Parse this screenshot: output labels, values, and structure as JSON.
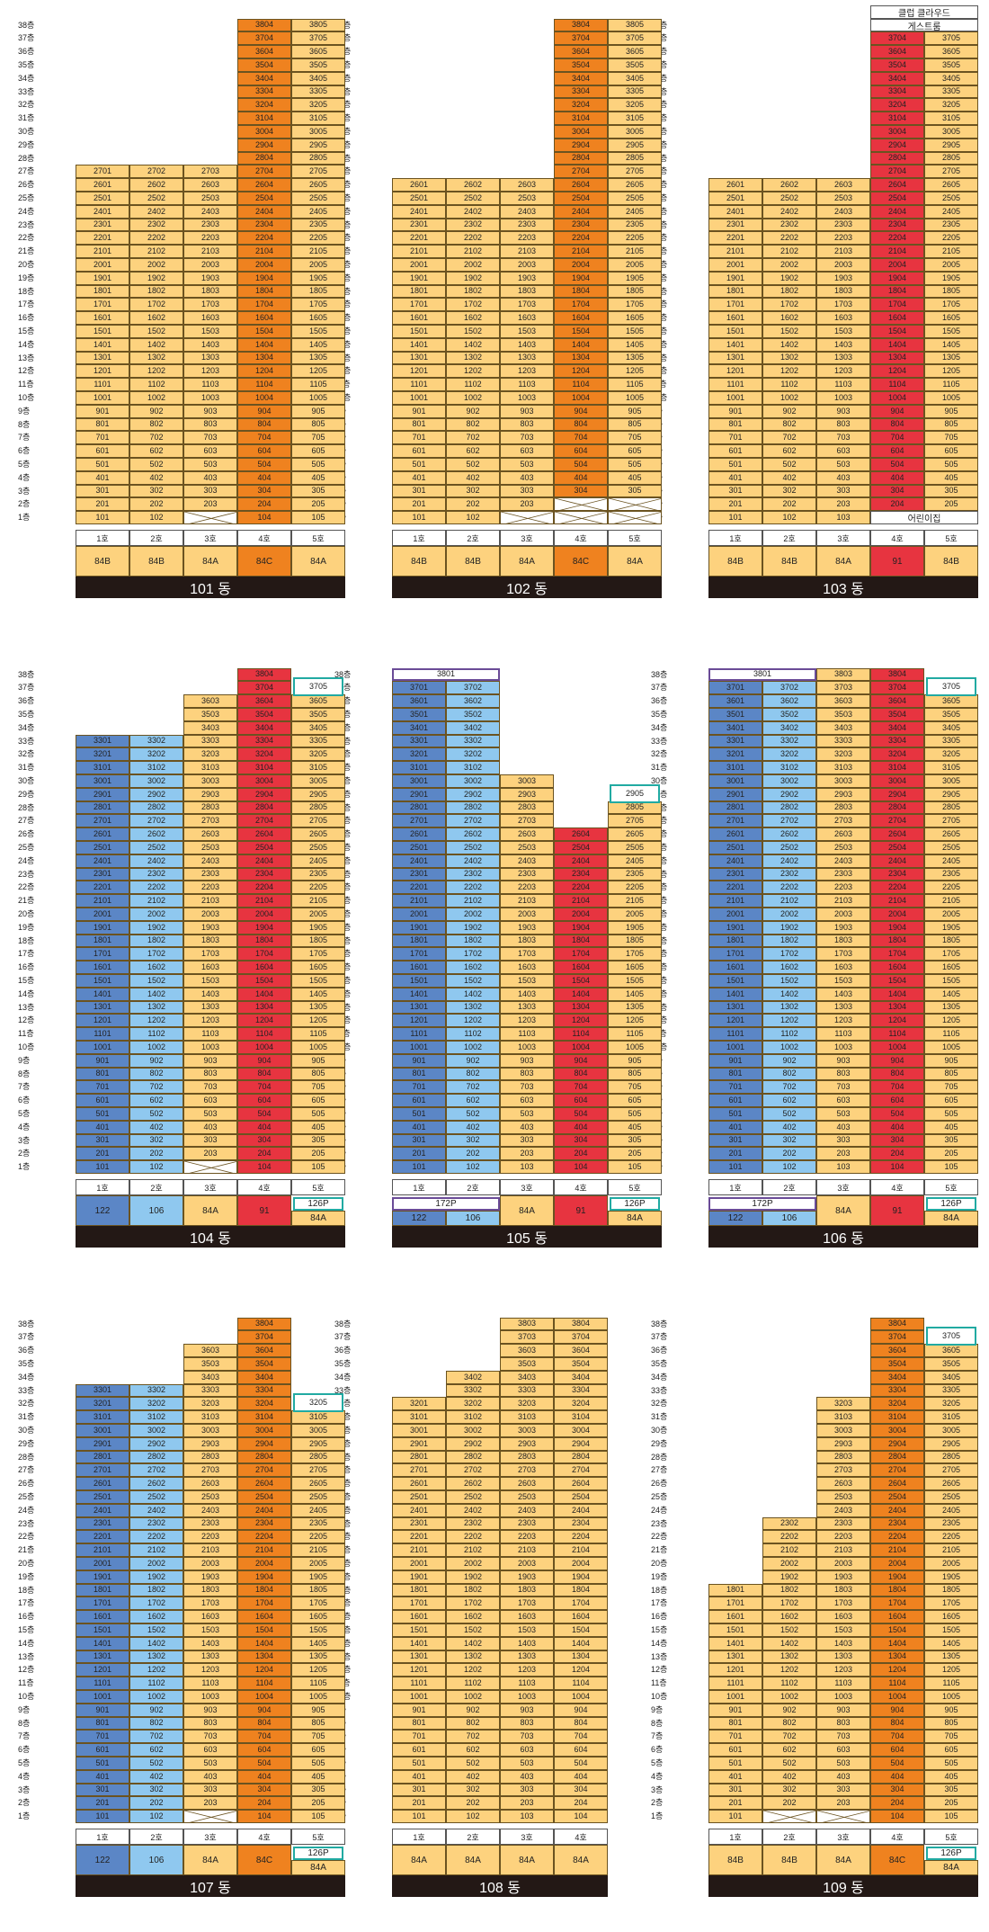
{
  "colors": {
    "Y": "#fdd27e",
    "O": "#ef821f",
    "R": "#e73440",
    "DB": "#5b86c6",
    "LB": "#8fc8ef",
    "X": "#ffffff",
    "purple": "#6a4b97",
    "teal": "#21aaa2"
  },
  "floor_labels": [
    "1층",
    "2층",
    "3층",
    "4층",
    "5층",
    "6층",
    "7층",
    "8층",
    "9층",
    "10층",
    "11층",
    "12층",
    "13층",
    "14층",
    "15층",
    "16층",
    "17층",
    "18층",
    "19층",
    "20층",
    "21층",
    "22층",
    "23층",
    "24층",
    "25층",
    "26층",
    "27층",
    "28층",
    "29층",
    "30층",
    "31층",
    "32층",
    "33층",
    "34층",
    "35층",
    "36층",
    "37층",
    "38층"
  ],
  "line_headers": [
    "1호",
    "2호",
    "3호",
    "4호",
    "5호"
  ],
  "buildings": [
    {
      "name": "101 동",
      "cols": [
        {
          "max": 27,
          "c": "Y",
          "type": "84B",
          "tc": "Y"
        },
        {
          "max": 27,
          "c": "Y",
          "type": "84B",
          "tc": "Y"
        },
        {
          "min": 2,
          "max": 27,
          "c": "Y",
          "type": "84A",
          "tc": "Y"
        },
        {
          "max": 38,
          "c": "O",
          "type": "84C",
          "tc": "O"
        },
        {
          "max": 38,
          "c": "Y",
          "type": "84A",
          "tc": "Y"
        }
      ],
      "x_floor": 1,
      "x_cols": [
        2
      ]
    },
    {
      "name": "102 동",
      "cols": [
        {
          "max": 26,
          "c": "Y",
          "type": "84B",
          "tc": "Y"
        },
        {
          "max": 26,
          "c": "Y",
          "type": "84B",
          "tc": "Y"
        },
        {
          "min": 2,
          "max": 26,
          "c": "Y",
          "type": "84A",
          "tc": "Y"
        },
        {
          "min": 3,
          "max": 38,
          "c": "O",
          "type": "84C",
          "tc": "O"
        },
        {
          "min": 3,
          "max": 38,
          "c": "Y",
          "type": "84A",
          "tc": "Y"
        }
      ],
      "x_floor": 1,
      "x_cols": [
        2,
        3,
        4
      ],
      "x_floor2": 2,
      "x_cols2": [
        3,
        4
      ]
    },
    {
      "name": "103 동",
      "cols": [
        {
          "max": 26,
          "c": "Y",
          "type": "84B",
          "tc": "Y"
        },
        {
          "max": 26,
          "c": "Y",
          "type": "84B",
          "tc": "Y"
        },
        {
          "max": 26,
          "c": "Y",
          "type": "84A",
          "tc": "Y"
        },
        {
          "min": 2,
          "max": 37,
          "c": "R",
          "type": "91",
          "tc": "R"
        },
        {
          "min": 2,
          "max": 37,
          "c": "Y",
          "type": "84B",
          "tc": "Y"
        }
      ],
      "note_top": [
        "클럽 클라우드",
        "게스트룸"
      ],
      "note_bottom": "어린이집"
    },
    {
      "name": "104 동",
      "cols": [
        {
          "max": 33,
          "c": "DB",
          "type": "122",
          "tc": "DB"
        },
        {
          "max": 33,
          "c": "LB",
          "type": "106",
          "tc": "LB"
        },
        {
          "min": 2,
          "max": 36,
          "c": "Y",
          "type": "84A",
          "tc": "Y"
        },
        {
          "max": 38,
          "c": "R",
          "type": "91",
          "tc": "R"
        },
        {
          "max": 36,
          "c": "Y",
          "type": "84A",
          "tc": "Y",
          "p_label": "126P",
          "p_floor": 37,
          "p_val": "3705"
        }
      ],
      "x_floor": 1,
      "x_cols": [
        2
      ]
    },
    {
      "name": "105 동",
      "cols": [
        {
          "max": 37,
          "c": "DB",
          "type": "122",
          "tc": "DB"
        },
        {
          "max": 37,
          "c": "LB",
          "type": "106",
          "tc": "LB"
        },
        {
          "max": 30,
          "c": "Y",
          "type": "84A",
          "tc": "Y"
        },
        {
          "max": 26,
          "c": "R",
          "type": "91",
          "tc": "R"
        },
        {
          "max": 28,
          "c": "Y",
          "type": "84A",
          "tc": "Y",
          "p_label": "126P",
          "p_floor": 29,
          "p_val": "2905"
        }
      ],
      "p12": {
        "label": "172P",
        "val": "3801"
      }
    },
    {
      "name": "106 동",
      "cols": [
        {
          "max": 37,
          "c": "DB",
          "type": "122",
          "tc": "DB"
        },
        {
          "max": 37,
          "c": "LB",
          "type": "106",
          "tc": "LB"
        },
        {
          "max": 38,
          "c": "Y",
          "type": "84A",
          "tc": "Y"
        },
        {
          "max": 38,
          "c": "R",
          "type": "91",
          "tc": "R"
        },
        {
          "max": 36,
          "c": "Y",
          "type": "84A",
          "tc": "Y",
          "p_label": "126P",
          "p_floor": 37,
          "p_val": "3705"
        }
      ],
      "p12": {
        "label": "172P",
        "val": "3801"
      }
    },
    {
      "name": "107 동",
      "cols": [
        {
          "max": 33,
          "c": "DB",
          "type": "122",
          "tc": "DB"
        },
        {
          "max": 33,
          "c": "LB",
          "type": "106",
          "tc": "LB"
        },
        {
          "min": 2,
          "max": 36,
          "c": "Y",
          "type": "84A",
          "tc": "Y"
        },
        {
          "max": 38,
          "c": "O",
          "type": "84C",
          "tc": "O"
        },
        {
          "max": 31,
          "c": "Y",
          "type": "84A",
          "tc": "Y",
          "p_label": "126P",
          "p_floor": 32,
          "p_val": "3205"
        }
      ],
      "x_floor": 1,
      "x_cols": [
        2
      ]
    },
    {
      "name": "108 동",
      "four": true,
      "cols": [
        {
          "max": 32,
          "c": "Y",
          "type": "84A",
          "tc": "Y"
        },
        {
          "max": 34,
          "c": "Y",
          "type": "84A",
          "tc": "Y"
        },
        {
          "max": 38,
          "c": "Y",
          "type": "84A",
          "tc": "Y"
        },
        {
          "max": 38,
          "c": "Y",
          "type": "84A",
          "tc": "Y"
        }
      ]
    },
    {
      "name": "109 동",
      "cols": [
        {
          "max": 18,
          "c": "Y",
          "type": "84B",
          "tc": "Y"
        },
        {
          "min": 2,
          "max": 23,
          "c": "Y",
          "type": "84B",
          "tc": "Y"
        },
        {
          "min": 2,
          "max": 32,
          "c": "Y",
          "type": "84A",
          "tc": "Y"
        },
        {
          "max": 38,
          "c": "O",
          "type": "84C",
          "tc": "O"
        },
        {
          "max": 36,
          "c": "Y",
          "type": "84A",
          "tc": "Y",
          "p_label": "126P",
          "p_floor": 37,
          "p_val": "3705"
        }
      ],
      "x_floor": 1,
      "x_cols": [
        1,
        2
      ]
    }
  ]
}
